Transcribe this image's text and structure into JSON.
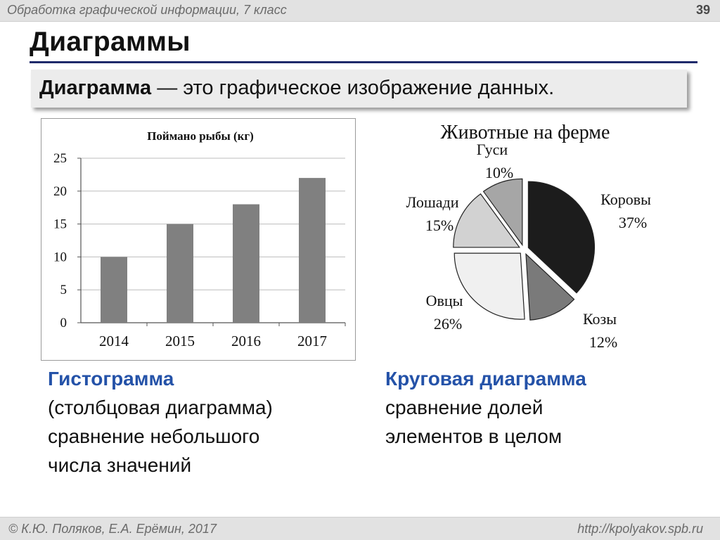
{
  "header": {
    "course": "Обработка графической информации, 7 класс",
    "page_number": "39"
  },
  "title": "Диаграммы",
  "definition": {
    "term": "Диаграмма",
    "text": " — это графическое изображение данных."
  },
  "chart_data": [
    {
      "type": "bar",
      "title": "Поймано рыбы (кг)",
      "categories": [
        "2014",
        "2015",
        "2016",
        "2017"
      ],
      "values": [
        10,
        15,
        18,
        22
      ],
      "yticks": [
        "0",
        "5",
        "10",
        "15",
        "20",
        "25"
      ],
      "ylim": [
        0,
        25
      ],
      "grid": true,
      "bar_color": "#808080"
    },
    {
      "type": "pie",
      "title": "Животные на ферме",
      "slices": [
        {
          "label": "Коровы",
          "percent_label": "37%",
          "value": 37,
          "color": "#1c1c1c"
        },
        {
          "label": "Козы",
          "percent_label": "12%",
          "value": 12,
          "color": "#7a7a7a"
        },
        {
          "label": "Овцы",
          "percent_label": "26%",
          "value": 26,
          "color": "#f0f0f0"
        },
        {
          "label": "Лошади",
          "percent_label": "15%",
          "value": 15,
          "color": "#d2d2d2"
        },
        {
          "label": "Гуси",
          "percent_label": "10%",
          "value": 10,
          "color": "#a6a6a6"
        }
      ]
    }
  ],
  "captions": {
    "histogram": {
      "title": "Гистограмма",
      "line1": "(столбцовая диаграмма)",
      "line2": "сравнение небольшого",
      "line3": "числа значений"
    },
    "pie": {
      "title": "Круговая диаграмма",
      "line1": "сравнение долей",
      "line2": "элементов в целом"
    }
  },
  "footer": {
    "authors": "© К.Ю. Поляков, Е.А. Ерёмин, 2017",
    "url": "http://kpolyakov.spb.ru"
  },
  "colors": {
    "title_rule": "#1f2a6b",
    "caption_accent": "#2452a8"
  }
}
